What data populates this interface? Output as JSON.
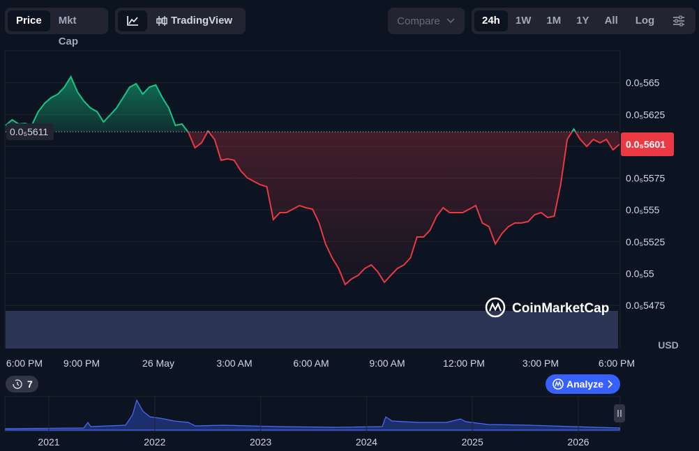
{
  "toolbar": {
    "modes": [
      "Price",
      "Mkt Cap"
    ],
    "view": "TradingView",
    "compare": "Compare",
    "ranges": [
      "24h",
      "1W",
      "1M",
      "1Y",
      "All"
    ],
    "log": "Log"
  },
  "chart_data": {
    "type": "line",
    "color_up": "#16c784",
    "color_down": "#ea3943",
    "values": [
      5.6164e-06,
      5.6208e-06,
      5.6175e-06,
      5.618e-06,
      5.6164e-06,
      5.6273e-06,
      5.6339e-06,
      5.6383e-06,
      5.641e-06,
      5.6465e-06,
      5.6547e-06,
      5.6427e-06,
      5.6355e-06,
      5.6301e-06,
      5.6273e-06,
      5.6191e-06,
      5.6246e-06,
      5.6301e-06,
      5.6383e-06,
      5.6465e-06,
      5.6492e-06,
      5.641e-06,
      5.6465e-06,
      5.6482e-06,
      5.6383e-06,
      5.6301e-06,
      5.6164e-06,
      5.6175e-06,
      5.6109e-06,
      5.5988e-06,
      5.6027e-06,
      5.612e-06,
      5.6054e-06,
      5.589e-06,
      5.5901e-06,
      5.589e-06,
      5.5808e-06,
      5.5753e-06,
      5.5725e-06,
      5.5698e-06,
      5.5682e-06,
      5.5424e-06,
      5.5479e-06,
      5.5479e-06,
      5.5506e-06,
      5.5534e-06,
      5.5517e-06,
      5.5506e-06,
      5.5397e-06,
      5.5232e-06,
      5.5123e-06,
      5.504e-06,
      5.4914e-06,
      5.4958e-06,
      5.4986e-06,
      5.504e-06,
      5.5068e-06,
      5.5013e-06,
      5.4931e-06,
      5.4986e-06,
      5.504e-06,
      5.5068e-06,
      5.5123e-06,
      5.5287e-06,
      5.5287e-06,
      5.5342e-06,
      5.5451e-06,
      5.5517e-06,
      5.5479e-06,
      5.5479e-06,
      5.5479e-06,
      5.5506e-06,
      5.5534e-06,
      5.5397e-06,
      5.5369e-06,
      5.5232e-06,
      5.5314e-06,
      5.5369e-06,
      5.5397e-06,
      5.5397e-06,
      5.5408e-06,
      5.5462e-06,
      5.5479e-06,
      5.544e-06,
      5.5451e-06,
      5.5698e-06,
      5.6054e-06,
      5.6136e-06,
      5.6054e-06,
      5.5999e-06,
      5.6054e-06,
      5.6027e-06,
      5.6054e-06,
      5.5972e-06,
      5.6016e-06
    ],
    "baseline": {
      "value": 5.6114e-06,
      "label": "0.0₅5611"
    },
    "current_price": {
      "value": 5.6016e-06,
      "label": "0.0₅5601"
    },
    "ylim": [
      5.475e-06,
      5.675e-06
    ],
    "yticks": [
      {
        "value": 5.65e-06,
        "label": "0.0₅565"
      },
      {
        "value": 5.625e-06,
        "label": "0.0₅5625"
      },
      {
        "value": 5.575e-06,
        "label": "0.0₅5575"
      },
      {
        "value": 5.55e-06,
        "label": "0.0₅555"
      },
      {
        "value": 5.525e-06,
        "label": "0.0₅5525"
      },
      {
        "value": 5.5e-06,
        "label": "0.0₅55"
      },
      {
        "value": 5.475e-06,
        "label": "0.0₅5475"
      }
    ],
    "x_labels": [
      "6:00 PM",
      "9:00 PM",
      "26 May",
      "3:00 AM",
      "6:00 AM",
      "9:00 AM",
      "12:00 PM",
      "3:00 PM",
      "6:00 PM"
    ],
    "currency": "USD",
    "watermark": "CoinMarketCap"
  },
  "navigator": {
    "years": [
      "2021",
      "2022",
      "2023",
      "2024",
      "2025",
      "2026"
    ]
  },
  "history_badge": "7",
  "analyze": "Analyze"
}
